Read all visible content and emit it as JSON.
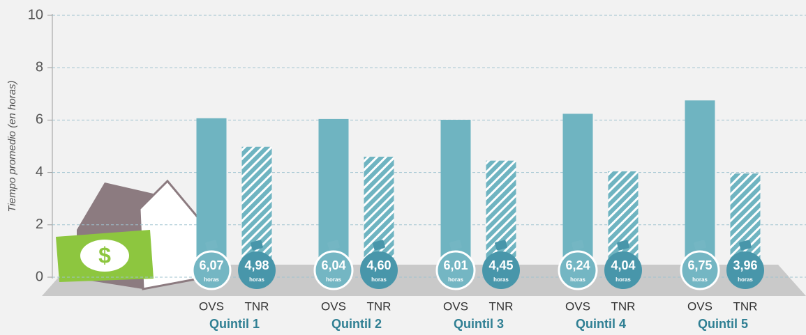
{
  "chart_data": {
    "type": "bar",
    "y_label": "Tiempo promedio (en horas)",
    "categories": [
      "Quintil 1",
      "Quintil 2",
      "Quintil 3",
      "Quintil 4",
      "Quintil 5"
    ],
    "series": [
      {
        "name": "OVS",
        "color": "#6fb4c1",
        "values": [
          6.07,
          6.04,
          6.01,
          6.24,
          6.75
        ],
        "value_labels": [
          "6,07",
          "6,04",
          "6,01",
          "6,24",
          "6,75"
        ]
      },
      {
        "name": "TNR",
        "color": "#6fb4c1",
        "hatch": true,
        "values": [
          4.98,
          4.6,
          4.45,
          4.04,
          3.96
        ],
        "value_labels": [
          "4,98",
          "4,60",
          "4,45",
          "4,04",
          "3,96"
        ]
      }
    ],
    "unit_label": "horas",
    "ylim": [
      0,
      10
    ],
    "yticks": [
      0,
      2,
      4,
      6,
      8,
      10
    ],
    "grid": true
  }
}
